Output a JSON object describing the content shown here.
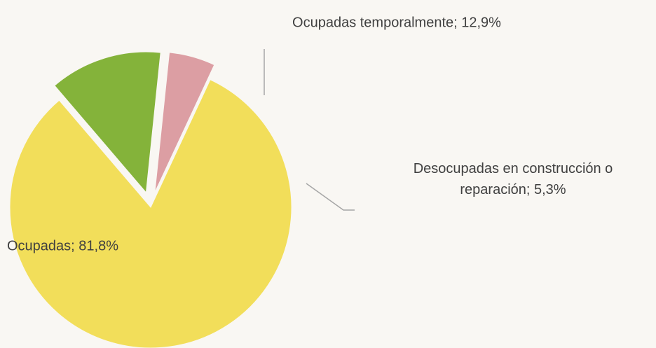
{
  "chart_data": {
    "type": "pie",
    "categories": [
      "Ocupadas",
      "Ocupadas temporalmente",
      "Desocupadas en construcción o reparación"
    ],
    "values": [
      81.8,
      12.9,
      5.3
    ],
    "value_labels": [
      "Ocupadas; 81,8%",
      "Ocupadas temporalmente; 12,9%",
      "Desocupadas en construcción o reparación; 5,3%"
    ],
    "colors": [
      "#f2de5a",
      "#84b33a",
      "#dc9ea3"
    ]
  }
}
